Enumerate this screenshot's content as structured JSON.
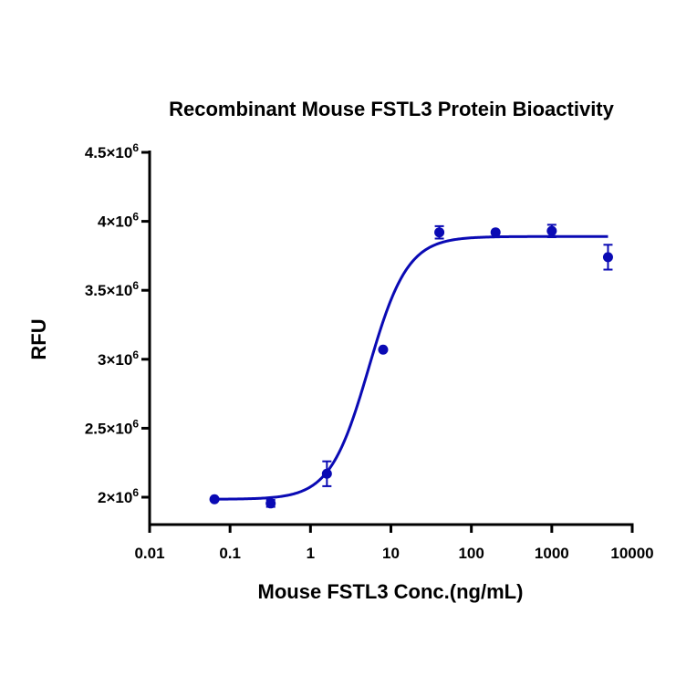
{
  "chart_data": {
    "type": "scatter",
    "title": "Recombinant Mouse FSTL3 Protein Bioactivity",
    "xlabel": "Mouse FSTL3 Conc.(ng/mL)",
    "ylabel": "RFU",
    "x_scale": "log",
    "xlim": [
      0.01,
      10000
    ],
    "ylim": [
      1800000,
      4500000
    ],
    "x_ticks": [
      0.01,
      0.1,
      1,
      10,
      100,
      1000,
      10000
    ],
    "x_tick_labels": [
      "0.01",
      "0.1",
      "1",
      "10",
      "100",
      "1000",
      "10000"
    ],
    "y_ticks": [
      2000000,
      2500000,
      3000000,
      3500000,
      4000000,
      4500000
    ],
    "y_tick_labels": [
      {
        "mantissa": "2×10",
        "exp": "6"
      },
      {
        "mantissa": "2.5×10",
        "exp": "6"
      },
      {
        "mantissa": "3×10",
        "exp": "6"
      },
      {
        "mantissa": "3.5×10",
        "exp": "6"
      },
      {
        "mantissa": "4×10",
        "exp": "6"
      },
      {
        "mantissa": "4.5×10",
        "exp": "6"
      }
    ],
    "grid": false,
    "color": "#0a0ab4",
    "points": [
      {
        "x": 0.064,
        "y": 1985000,
        "err": 0
      },
      {
        "x": 0.32,
        "y": 1955000,
        "err": 25000
      },
      {
        "x": 1.6,
        "y": 2170000,
        "err": 90000
      },
      {
        "x": 8,
        "y": 3070000,
        "err": 0
      },
      {
        "x": 40,
        "y": 3920000,
        "err": 45000
      },
      {
        "x": 200,
        "y": 3920000,
        "err": 0
      },
      {
        "x": 1000,
        "y": 3930000,
        "err": 45000
      },
      {
        "x": 5000,
        "y": 3740000,
        "err": 90000
      }
    ],
    "fit": {
      "model": "4PL",
      "bottom": 1985000,
      "top": 3890000,
      "ec50": 5.3,
      "hill": 1.8
    }
  }
}
